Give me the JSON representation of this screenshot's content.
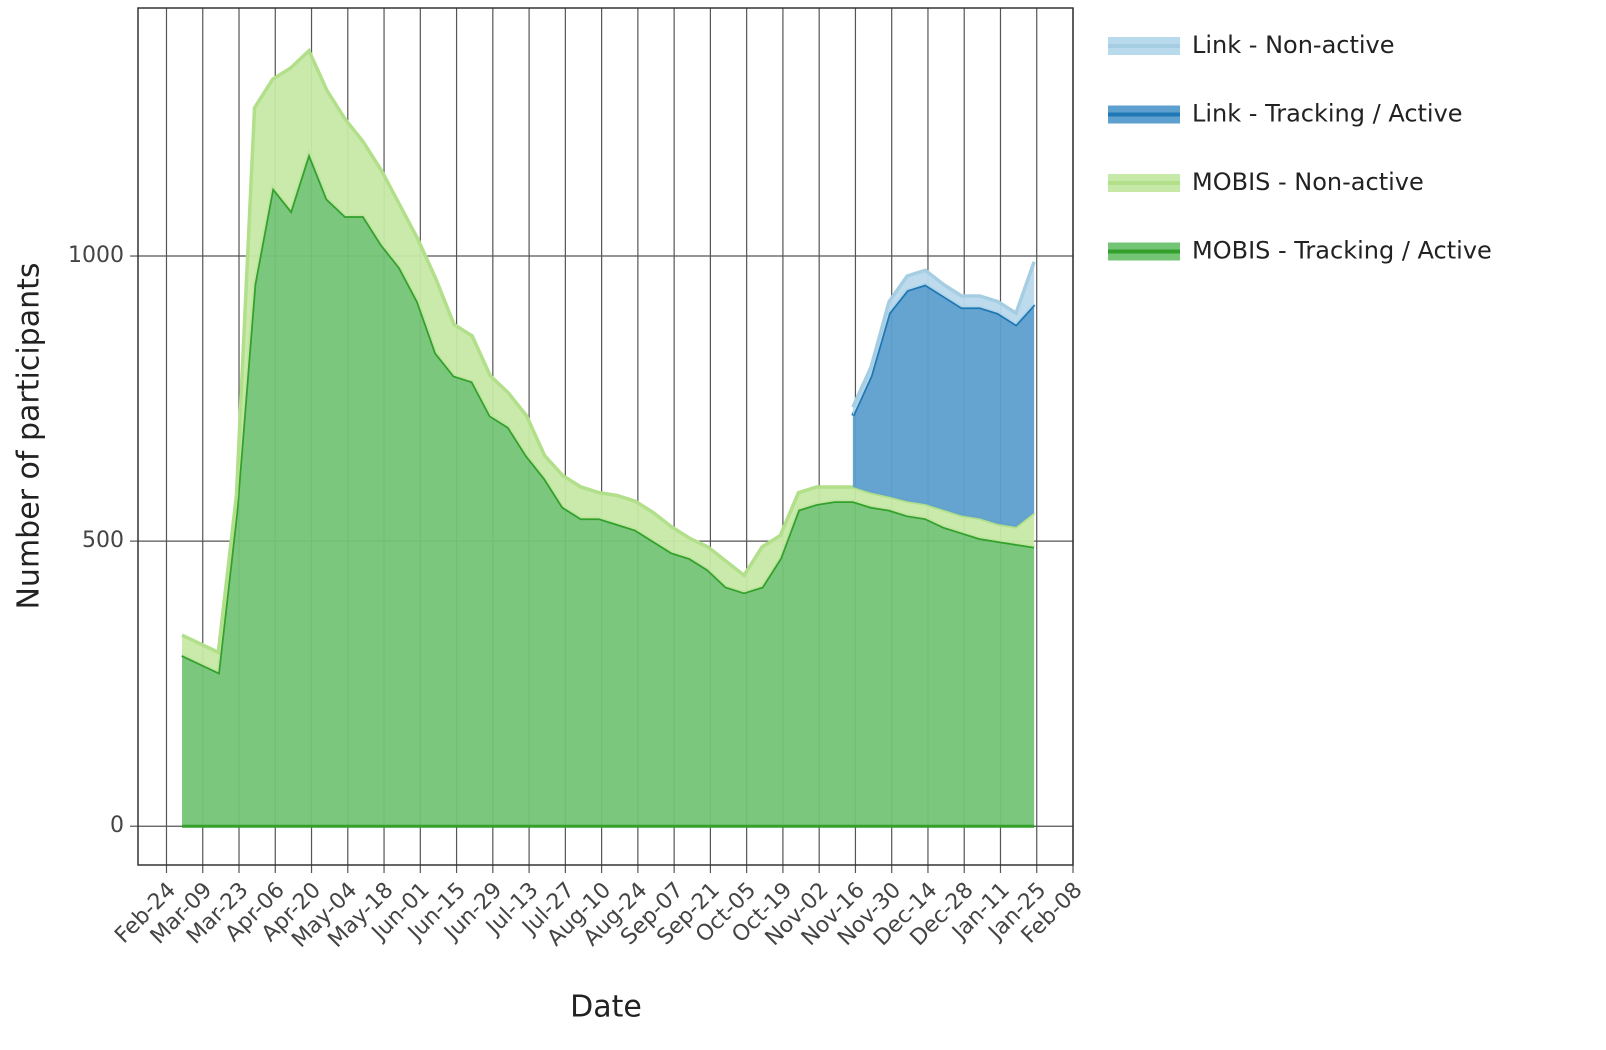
{
  "chart_data": {
    "type": "stacked-area",
    "x_label": "Date",
    "y_label": "Number of participants",
    "x": [
      "Mar-01",
      "Mar-08",
      "Mar-15",
      "Mar-22",
      "Mar-29",
      "Apr-05",
      "Apr-12",
      "Apr-19",
      "Apr-26",
      "May-03",
      "May-10",
      "May-17",
      "May-24",
      "May-31",
      "Jun-07",
      "Jun-14",
      "Jun-21",
      "Jun-28",
      "Jul-05",
      "Jul-12",
      "Jul-19",
      "Jul-26",
      "Aug-02",
      "Aug-09",
      "Aug-16",
      "Aug-23",
      "Aug-30",
      "Sep-06",
      "Sep-13",
      "Sep-20",
      "Sep-27",
      "Oct-04",
      "Oct-11",
      "Oct-18",
      "Oct-25",
      "Nov-01",
      "Nov-08",
      "Nov-15",
      "Nov-22",
      "Nov-29",
      "Dec-06",
      "Dec-13",
      "Dec-20",
      "Dec-27",
      "Jan-03",
      "Jan-10",
      "Jan-17",
      "Jan-24"
    ],
    "series": [
      {
        "name": "MOBIS - Tracking / Active",
        "color": "#33a02c",
        "fill": "#74c476",
        "values": [
          300,
          285,
          270,
          550,
          950,
          1120,
          1080,
          1180,
          1100,
          1070,
          1070,
          1020,
          980,
          920,
          830,
          790,
          780,
          720,
          700,
          650,
          610,
          560,
          540,
          540,
          530,
          520,
          500,
          480,
          470,
          450,
          420,
          410,
          420,
          470,
          555,
          565,
          570,
          570,
          560,
          555,
          545,
          540,
          525,
          515,
          505,
          500,
          495,
          490
        ]
      },
      {
        "name": "MOBIS - Non-active",
        "color": "#b2df8a",
        "fill": "#c7e9a7",
        "values": [
          35,
          35,
          35,
          30,
          310,
          190,
          250,
          180,
          190,
          170,
          130,
          130,
          110,
          110,
          130,
          90,
          80,
          70,
          60,
          70,
          40,
          55,
          55,
          45,
          50,
          50,
          50,
          45,
          35,
          40,
          45,
          30,
          70,
          40,
          30,
          30,
          25,
          25,
          25,
          23,
          25,
          25,
          30,
          30,
          35,
          30,
          30,
          60
        ]
      },
      {
        "name": "Link - Tracking / Active",
        "color": "#1f78b4",
        "fill": "#5d9fcf",
        "values": [
          null,
          null,
          null,
          null,
          null,
          null,
          null,
          null,
          null,
          null,
          null,
          null,
          null,
          null,
          null,
          null,
          null,
          null,
          null,
          null,
          null,
          null,
          null,
          null,
          null,
          null,
          null,
          null,
          null,
          null,
          null,
          null,
          null,
          null,
          null,
          null,
          null,
          125,
          205,
          322,
          370,
          385,
          375,
          365,
          370,
          370,
          355,
          365
        ]
      },
      {
        "name": "Link - Non-active",
        "color": "#a6cee3",
        "fill": "#b9d9ec",
        "values": [
          null,
          null,
          null,
          null,
          null,
          null,
          null,
          null,
          null,
          null,
          null,
          null,
          null,
          null,
          null,
          null,
          null,
          null,
          null,
          null,
          null,
          null,
          null,
          null,
          null,
          null,
          null,
          null,
          null,
          null,
          null,
          null,
          null,
          null,
          null,
          null,
          null,
          15,
          15,
          20,
          25,
          25,
          20,
          20,
          20,
          20,
          20,
          75
        ]
      }
    ],
    "xlim": [
      "Feb-13",
      "Feb-08"
    ],
    "xticks": [
      "Feb-24",
      "Mar-09",
      "Mar-23",
      "Apr-06",
      "Apr-20",
      "May-04",
      "May-18",
      "Jun-01",
      "Jun-15",
      "Jun-29",
      "Jul-13",
      "Jul-27",
      "Aug-10",
      "Aug-24",
      "Sep-07",
      "Sep-21",
      "Oct-05",
      "Oct-19",
      "Nov-02",
      "Nov-16",
      "Nov-30",
      "Dec-14",
      "Dec-28",
      "Jan-11",
      "Jan-25",
      "Feb-08"
    ],
    "ylim": [
      -68,
      1435
    ],
    "yticks": [
      0,
      500,
      1000
    ],
    "grid": true,
    "legend": "right"
  }
}
